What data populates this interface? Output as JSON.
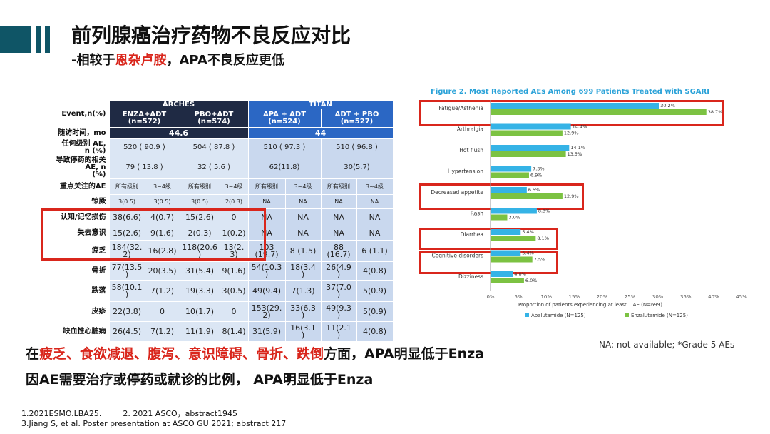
{
  "title": "前列腺癌治疗药物不良反应对比",
  "subtitle": {
    "prefix": "-相较于",
    "highlight": "恩杂卢胺",
    "suffix": "，APA不良反应更低"
  },
  "table": {
    "arches_label": "ARCHES",
    "titan_label": "TITAN",
    "event_label": "Event,n(%)",
    "arms": [
      {
        "line1": "ENZA+ADT",
        "line2": "(n=572)"
      },
      {
        "line1": "PBO+ADT",
        "line2": "(n=574)"
      },
      {
        "line1": "APA + ADT",
        "line2": "(n=524)"
      },
      {
        "line1": "ADT + PBO",
        "line2": "(n=527)"
      }
    ],
    "followup_label": "随访时间，mo",
    "followup_arches": "44.6",
    "followup_titan": "44",
    "any_ae_label": "任何级别 AE, n (%)",
    "any_ae": [
      "520 ( 90.9 )",
      "504 ( 87.8 )",
      "510 ( 97.3 )",
      "510 ( 96.8 )"
    ],
    "disc_label_1": "导致停药的相关AE, n",
    "disc_label_2": "(%)",
    "disc": [
      "79 ( 13.8 )",
      "32 ( 5.6 )",
      "62(11.8)",
      "30(5.7)"
    ],
    "focus_label": "重点关注的AE",
    "subhdr_all": "所有级别",
    "subhdr_g34": "3~4级",
    "rows": [
      {
        "label": "惊厥",
        "cells": [
          "3(0.5)",
          "3(0.5)",
          "3(0.5)",
          "2(0.3)",
          "NA",
          "NA",
          "NA",
          "NA"
        ]
      },
      {
        "label": "认知/记忆损伤",
        "cells": [
          "38(6.6)",
          "4(0.7)",
          "15(2.6)",
          "0",
          "NA",
          "NA",
          "NA",
          "NA"
        ]
      },
      {
        "label": "失去意识",
        "cells": [
          "15(2.6)",
          "9(1.6)",
          "2(0.3)",
          "1(0.2)",
          "NA",
          "NA",
          "NA",
          "NA"
        ]
      },
      {
        "label": "疲乏",
        "cells": [
          "184(32.\n2)",
          "16(2.8)",
          "118(20.6\n)",
          "13(2.\n3)",
          "103\n(19.7)",
          "8 (1.5)",
          "88\n(16.7)",
          "6 (1.1)"
        ]
      },
      {
        "label": "骨折",
        "cells": [
          "77(13.5\n)",
          "20(3.5)",
          "31(5.4)",
          "9(1.6)",
          "54(10.3\n)",
          "18(3.4\n)",
          "26(4.9\n)",
          "4(0.8)"
        ]
      },
      {
        "label": "跌落",
        "cells": [
          "58(10.1\n)",
          "7(1.2)",
          "19(3.3)",
          "3(0.5)",
          "49(9.4)",
          "7(1.3)",
          "37(7.0\n)",
          "5(0.9)"
        ]
      },
      {
        "label": "皮疹",
        "cells": [
          "22(3.8)",
          "0",
          "10(1.7)",
          "0",
          "153(29.\n2)",
          "33(6.3\n)",
          "49(9.3\n)",
          "5(0.9)"
        ]
      },
      {
        "label": "缺血性心脏病",
        "cells": [
          "26(4.5)",
          "7(1.2)",
          "11(1.9)",
          "8(1.4)",
          "31(5.9)",
          "16(3.1\n)",
          "11(2.1\n)",
          "4(0.8)"
        ]
      }
    ]
  },
  "chart_data": {
    "type": "bar",
    "orientation": "horizontal",
    "title": "Figure 2. Most Reported AEs Among 699 Patients Treated with SGARI",
    "xlabel_1": "Proportion of patients experiencing at least 1 AE (N=699)",
    "categories": [
      "Fatigue/Asthenia",
      "Arthralgia",
      "Hot flush",
      "Hypertension",
      "Decreased appetite",
      "Rash",
      "Diarrhea",
      "Cognitive disorders",
      "Dizziness"
    ],
    "series": [
      {
        "name": "Apalutamide (N=125)",
        "color": "#35b3e6",
        "values": [
          30.2,
          14.4,
          14.1,
          7.3,
          6.5,
          8.3,
          5.4,
          5.4,
          4.0
        ]
      },
      {
        "name": "Enzalutamide (N=125)",
        "color": "#7cc242",
        "values": [
          38.7,
          12.9,
          13.5,
          6.9,
          12.9,
          3.0,
          8.1,
          7.5,
          6.0
        ]
      }
    ],
    "labels_apa": [
      "30.2%",
      "14.4%",
      "14.1%",
      "7.3%",
      "6.5%",
      "8.3%",
      "5.4%",
      "5.4%",
      "4.0%"
    ],
    "labels_enza": [
      "38.7%",
      "12.9%",
      "13.5%",
      "6.9%",
      "12.9%",
      "3.0%",
      "8.1%",
      "7.5%",
      "6.0%"
    ],
    "xticks": [
      "0%",
      "5%",
      "10%",
      "15%",
      "20%",
      "25%",
      "30%",
      "35%",
      "40%",
      "45%"
    ],
    "xlim": [
      0,
      45
    ],
    "legend": [
      "Apalutamide (N=125)",
      "Enzalutamide (N=125)"
    ],
    "legend_position": "bottom"
  },
  "note_na": "NA: not available; *Grade 5 AEs",
  "conclusion1": {
    "prefix": "在",
    "highlight": "疲乏、食欲减退、腹泻、意识障碍、骨折、跌倒",
    "suffix": "方面，APA明显低于Enza"
  },
  "conclusion2": "因AE需要治疗或停药或就诊的比例， APA明显低于Enza",
  "refs": {
    "line1a": "1.2021ESMO.LBA25.",
    "line1b": "2. 2021 ASCO，abstract1945",
    "line2": "3.Jiang S, et al. Poster presentation at ASCO GU 2021; abstract 217"
  },
  "colors": {
    "accent_red": "#d9261c",
    "dark_navy": "#1f2a44",
    "titan_blue": "#2b67c4",
    "bar_teal": "#0f5566"
  }
}
